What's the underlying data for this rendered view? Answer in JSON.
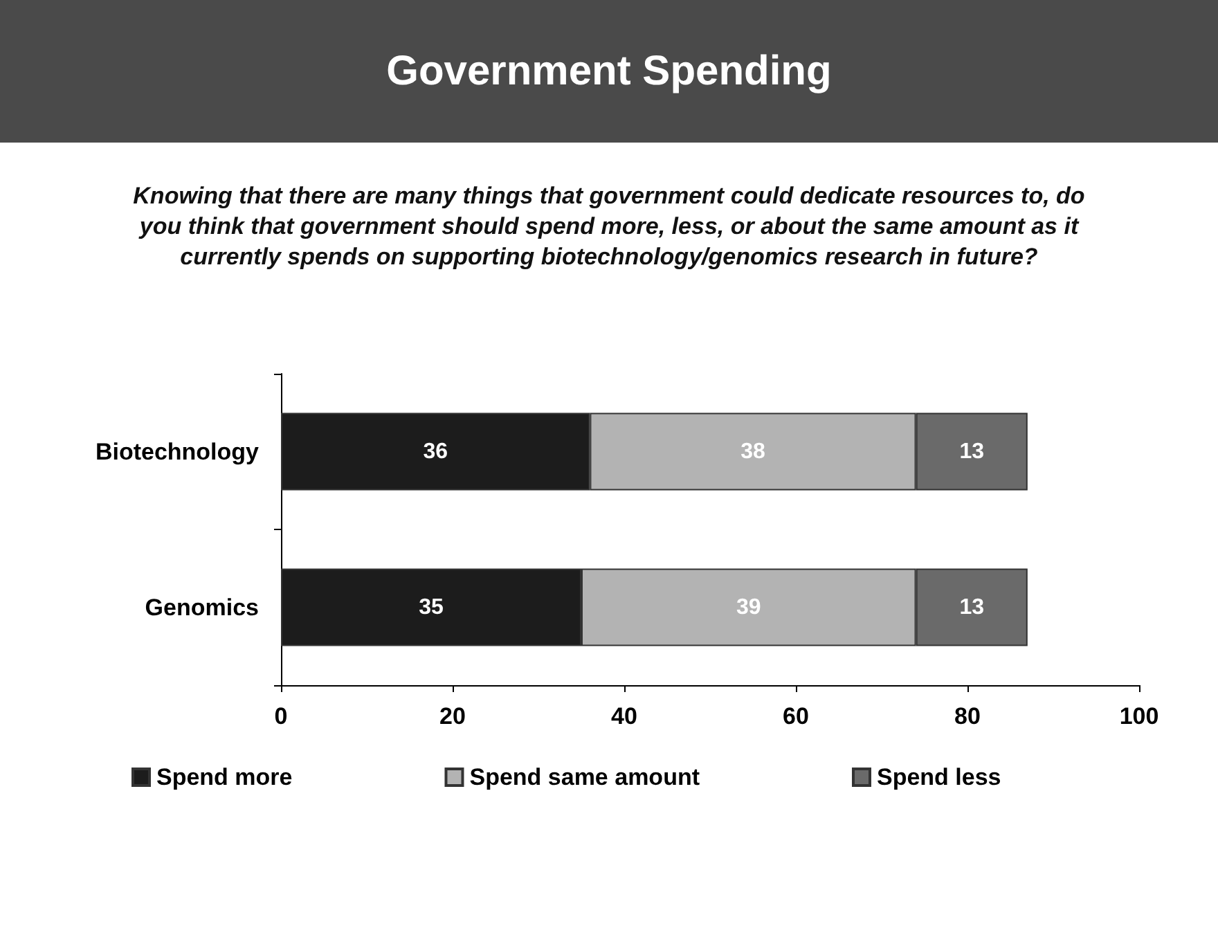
{
  "chart_data": {
    "type": "bar",
    "orientation": "horizontal",
    "stacked": true,
    "title": "Government Spending",
    "subtitle": "Knowing that there are many things that government could dedicate resources to, do you think that government should spend more, less, or about the same amount as it currently spends on supporting biotechnology/genomics research in future?",
    "categories": [
      "Biotechnology",
      "Genomics"
    ],
    "series": [
      {
        "name": "Spend more",
        "color": "#1c1c1c",
        "values": [
          36,
          35
        ]
      },
      {
        "name": "Spend same amount",
        "color": "#b3b3b3",
        "values": [
          38,
          39
        ]
      },
      {
        "name": "Spend less",
        "color": "#6a6a6a",
        "values": [
          13,
          13
        ]
      }
    ],
    "xlim": [
      0,
      100
    ],
    "xticks": [
      0,
      20,
      40,
      60,
      80,
      100
    ],
    "data_labels": true,
    "grid": false,
    "legend": "bottom"
  }
}
